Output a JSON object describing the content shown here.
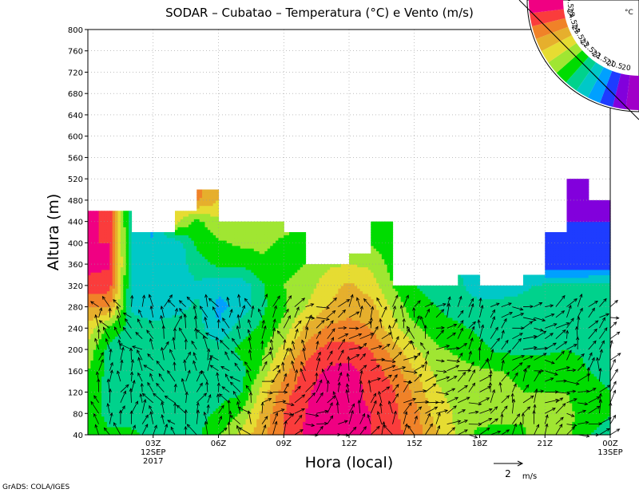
{
  "chart_data": {
    "type": "heatmap",
    "title": "SODAR – Cubatao – Temperatura (°C) e Vento (m/s)",
    "xlabel": "Hora (local)",
    "ylabel": "Altura (m)",
    "ylim": [
      40,
      800
    ],
    "yticks": [
      40,
      80,
      120,
      160,
      200,
      240,
      280,
      320,
      360,
      400,
      440,
      480,
      520,
      560,
      600,
      640,
      680,
      720,
      760,
      800
    ],
    "xlim": [
      0,
      24
    ],
    "xticks": [
      {
        "hour": 3,
        "label": "03Z",
        "sub1": "12SEP",
        "sub2": "2017"
      },
      {
        "hour": 6,
        "label": "06Z"
      },
      {
        "hour": 9,
        "label": "09Z"
      },
      {
        "hour": 12,
        "label": "12Z"
      },
      {
        "hour": 15,
        "label": "15Z"
      },
      {
        "hour": 18,
        "label": "18Z"
      },
      {
        "hour": 21,
        "label": "21Z"
      },
      {
        "hour": 24,
        "label": "00Z",
        "sub1": "13SEP"
      }
    ],
    "grid": true,
    "colorbar": {
      "unit": "°C",
      "levels": [
        "20",
        "20.5",
        "21",
        "21.5",
        "22",
        "22.5",
        "23",
        "23.5",
        "24",
        "24.5",
        "25",
        "25.5"
      ],
      "colors": [
        "#a000c8",
        "#8200dc",
        "#1e3cff",
        "#00a0ff",
        "#00c8c8",
        "#00d28c",
        "#00dc00",
        "#a0e632",
        "#e6dc32",
        "#e6af2d",
        "#f08228",
        "#fa3c3c",
        "#f00082"
      ]
    },
    "temperature_hours": [
      0,
      1,
      2,
      3,
      4,
      5,
      6,
      7,
      8,
      9,
      10,
      11,
      12,
      13,
      14,
      15,
      16,
      17,
      18,
      19,
      20,
      21,
      22,
      23,
      24
    ],
    "temperature_heights": [
      40,
      80,
      120,
      160,
      200,
      240,
      280,
      320,
      360,
      400,
      440,
      480,
      520
    ],
    "temperature_grid": [
      [
        23.0,
        22.6,
        22.6,
        22.4,
        22.3,
        22.4,
        22.9,
        23.6,
        24.4,
        25.0,
        25.6,
        25.8,
        25.6,
        25.5,
        25.2,
        24.8,
        24.1,
        23.4,
        22.8,
        22.7,
        22.9,
        23.4,
        23.2,
        22.5,
        22.4
      ],
      [
        22.8,
        22.3,
        22.3,
        22.3,
        22.3,
        22.3,
        22.6,
        23.0,
        24.1,
        25.0,
        25.5,
        25.8,
        25.8,
        25.5,
        25.1,
        24.7,
        23.8,
        23.4,
        23.3,
        23.3,
        23.1,
        23.2,
        23.2,
        22.6,
        22.5
      ],
      [
        22.8,
        22.3,
        22.3,
        22.3,
        22.3,
        22.3,
        22.3,
        22.4,
        23.7,
        24.8,
        25.4,
        25.8,
        25.8,
        25.3,
        25.1,
        24.4,
        23.6,
        23.3,
        23.3,
        23.3,
        23.0,
        23.0,
        23.0,
        22.6,
        22.5
      ],
      [
        23.0,
        22.3,
        22.3,
        22.3,
        22.3,
        22.3,
        22.3,
        22.3,
        23.1,
        24.3,
        25.2,
        25.6,
        25.7,
        25.3,
        24.8,
        24.0,
        23.4,
        23.2,
        23.1,
        23.0,
        22.8,
        22.8,
        22.8,
        22.5,
        22.4
      ],
      [
        23.3,
        22.3,
        22.3,
        22.3,
        22.3,
        22.3,
        22.3,
        22.6,
        22.9,
        23.7,
        24.7,
        25.2,
        25.2,
        25.0,
        24.3,
        23.6,
        23.1,
        22.9,
        22.6,
        22.4,
        22.4,
        22.4,
        22.5,
        22.4,
        22.4
      ],
      [
        23.8,
        22.8,
        22.3,
        22.3,
        22.3,
        22.3,
        21.5,
        22.3,
        22.6,
        23.2,
        24.1,
        24.6,
        24.7,
        24.5,
        23.7,
        23.1,
        22.7,
        22.6,
        22.4,
        22.3,
        22.3,
        22.3,
        22.3,
        22.3,
        22.3
      ],
      [
        24.5,
        24.5,
        21.9,
        21.5,
        21.8,
        22.1,
        21.4,
        21.6,
        22.4,
        22.9,
        23.5,
        24.0,
        24.3,
        24.2,
        23.4,
        22.7,
        22.5,
        22.3,
        22.3,
        22.3,
        22.2,
        22.2,
        22.2,
        22.2,
        22.3
      ],
      [
        25.4,
        25.2,
        21.9,
        21.5,
        21.7,
        21.9,
        21.6,
        21.6,
        22.4,
        23.0,
        23.2,
        23.8,
        24.1,
        23.8,
        23.0,
        22.5,
        22.3,
        22.2,
        21.5,
        21.6,
        21.9,
        22.1,
        22.1,
        22.2,
        22.2
      ],
      [
        25.6,
        25.6,
        21.9,
        21.5,
        21.6,
        22.3,
        22.6,
        22.6,
        22.9,
        22.8,
        23.0,
        23.4,
        23.5,
        23.4,
        22.8,
        22.6,
        22.4,
        22.0,
        21.5,
        21.5,
        21.5,
        20.7,
        20.6,
        20.6,
        20.6
      ],
      [
        25.5,
        25.5,
        21.9,
        21.5,
        21.6,
        22.6,
        22.9,
        23.1,
        23.1,
        22.9,
        22.8,
        23.0,
        23.0,
        23.0,
        22.6,
        22.4,
        22.2,
        22.2,
        22.0,
        22.0,
        21.8,
        20.6,
        20.5,
        20.5,
        20.5
      ],
      [
        25.6,
        25.4,
        21.9,
        21.4,
        23.7,
        22.8,
        23.4,
        23.4,
        23.2,
        23.2,
        23.0,
        23.0,
        23.0,
        23.0,
        22.6,
        22.4,
        22.2,
        22.2,
        22.0,
        22.0,
        21.8,
        20.6,
        20.5,
        20.5,
        20.5
      ],
      [
        25.6,
        25.4,
        21.9,
        21.4,
        23.7,
        24.6,
        24.0,
        23.4,
        23.2,
        23.2,
        23.0,
        23.0,
        23.0,
        23.0,
        22.6,
        22.4,
        22.2,
        22.2,
        22.0,
        22.0,
        21.8,
        20.6,
        20.5,
        20.4,
        20.4
      ],
      [
        25.6,
        25.4,
        21.9,
        21.4,
        23.7,
        24.6,
        24.6,
        23.4,
        23.2,
        23.2,
        23.0,
        23.0,
        23.0,
        23.0,
        22.6,
        22.4,
        22.2,
        22.2,
        22.0,
        22.0,
        21.8,
        20.6,
        20.4,
        20.4,
        20.4
      ]
    ],
    "data_top_height": [
      460,
      460,
      420,
      420,
      460,
      500,
      440,
      440,
      440,
      420,
      360,
      360,
      380,
      440,
      320,
      320,
      320,
      340,
      320,
      320,
      340,
      420,
      520,
      480,
      480
    ],
    "wind_hours": [
      0.5,
      1,
      1.5,
      2,
      2.5,
      3,
      3.5,
      4,
      4.5,
      5,
      5.5,
      6,
      6.5,
      7,
      7.5,
      8,
      8.5,
      9,
      9.5,
      10,
      10.5,
      11,
      11.5,
      12,
      12.5,
      13,
      13.5,
      14,
      14.5,
      15,
      15.5,
      16,
      16.5,
      17,
      17.5,
      18,
      18.5,
      19,
      19.5,
      20,
      20.5,
      21,
      21.5,
      22,
      22.5,
      23,
      23.5,
      24
    ],
    "wind_heights": [
      40,
      60,
      80,
      100,
      120,
      140,
      160,
      180,
      200,
      220,
      240,
      260,
      280
    ],
    "wind_vector_unit": {
      "value": "2",
      "unit": "m/s"
    }
  },
  "credit": "GrADS: COLA/IGES"
}
